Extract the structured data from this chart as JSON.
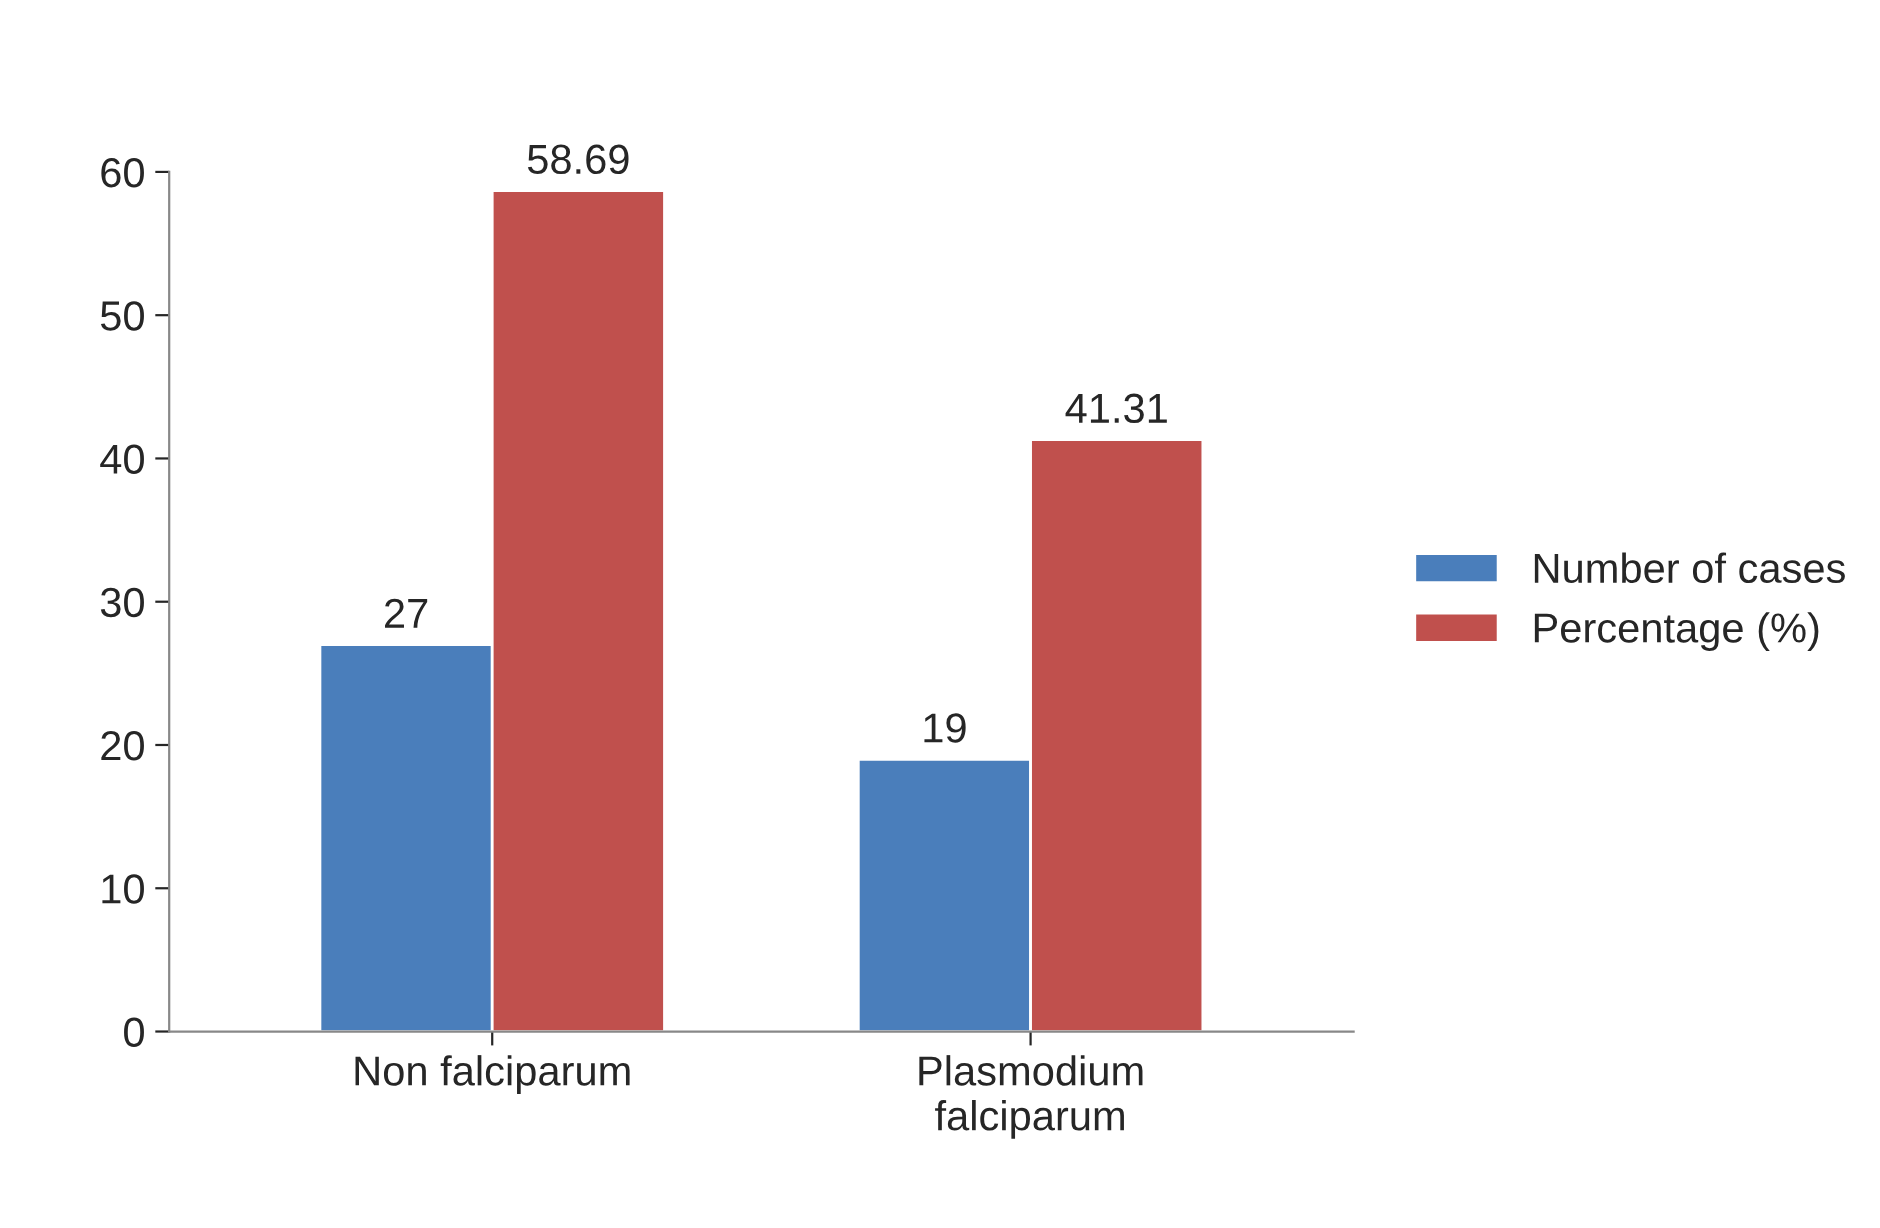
{
  "chart_data": {
    "type": "bar",
    "categories": [
      "Non falciparum",
      "Plasmodium\nfalciparum"
    ],
    "series": [
      {
        "name": "Number of cases",
        "color": "#4a7ebb",
        "values": [
          27,
          19
        ]
      },
      {
        "name": "Percentage (%)",
        "color": "#c0504d",
        "values": [
          58.69,
          41.31
        ]
      }
    ],
    "ylim": [
      0,
      60
    ],
    "yticks": [
      0,
      10,
      20,
      30,
      40,
      50,
      60
    ],
    "data_labels": true,
    "legend": "right",
    "grid": false
  }
}
